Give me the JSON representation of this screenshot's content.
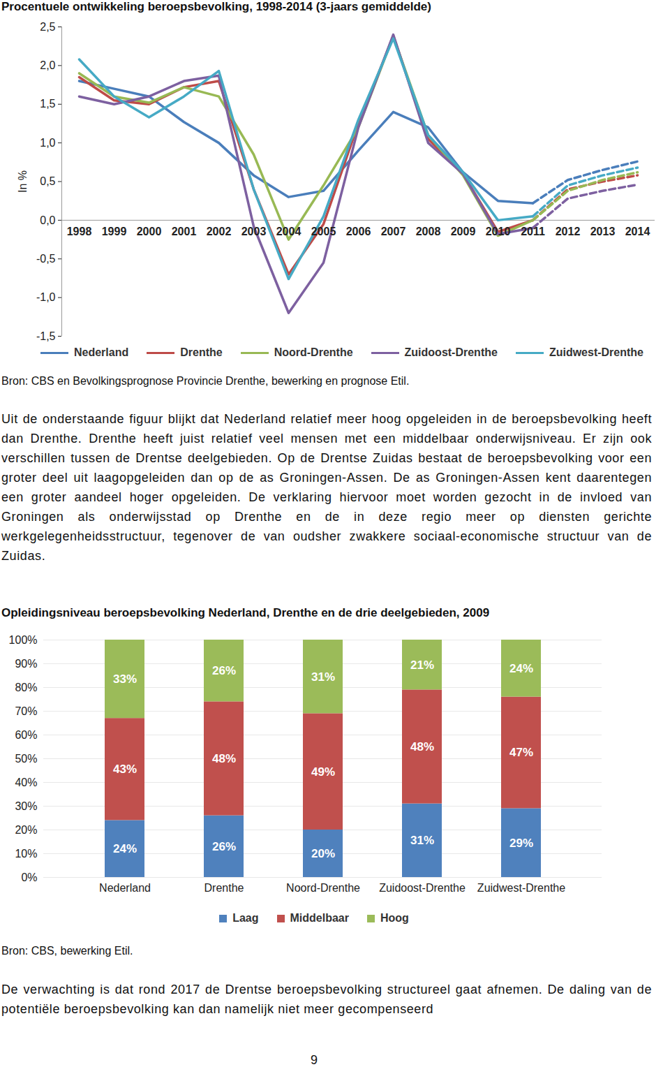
{
  "chart_data": [
    {
      "type": "line",
      "title": "Procentuele ontwikkeling beroepsbevolking, 1998-2014 (3-jaars gemiddelde)",
      "y_label": "In %",
      "x": [
        1998,
        1999,
        2000,
        2001,
        2002,
        2003,
        2004,
        2005,
        2006,
        2007,
        2008,
        2009,
        2010,
        2011,
        2012,
        2013,
        2014
      ],
      "xlim": [
        1997.5,
        2014.5
      ],
      "xticks": [
        1998,
        1999,
        2000,
        2001,
        2002,
        2003,
        2004,
        2005,
        2006,
        2007,
        2008,
        2009,
        2010,
        2011,
        2012,
        2013,
        2014
      ],
      "ylim": [
        -1.5,
        2.5
      ],
      "yticks": [
        {
          "value": -1.5,
          "label": "-1,5"
        },
        {
          "value": -1,
          "label": "-1,0"
        },
        {
          "value": -0.5,
          "label": "-0,5"
        },
        {
          "value": 0,
          "label": "0,0"
        },
        {
          "value": 0.5,
          "label": "0,5"
        },
        {
          "value": 1,
          "label": "1,0"
        },
        {
          "value": 1.5,
          "label": "1,5"
        },
        {
          "value": 2,
          "label": "2,0"
        },
        {
          "value": 2.5,
          "label": "2,5"
        }
      ],
      "grid": false,
      "legend": "bottom",
      "series": [
        {
          "name": "Nederland",
          "color": "#4a7ebb",
          "line_style": "solid",
          "values": [
            1.8,
            1.7,
            1.6,
            1.27,
            1.0,
            0.58,
            0.3,
            0.38,
            0.9,
            1.4,
            1.2,
            0.62,
            0.25,
            0.22,
            null,
            null,
            null
          ]
        },
        {
          "name": "Drenthe",
          "color": "#be4b48",
          "line_style": "solid",
          "values": [
            1.85,
            1.55,
            1.5,
            1.72,
            1.8,
            0.4,
            -0.7,
            -0.05,
            1.25,
            2.38,
            1.05,
            0.6,
            -0.15,
            0.0,
            null,
            null,
            null
          ]
        },
        {
          "name": "Noord-Drenthe",
          "color": "#98b954",
          "line_style": "solid",
          "values": [
            1.9,
            1.6,
            1.52,
            1.72,
            1.6,
            0.85,
            -0.25,
            0.45,
            1.2,
            2.38,
            1.1,
            0.58,
            -0.2,
            0.0,
            null,
            null,
            null
          ]
        },
        {
          "name": "Zuidoost-Drenthe",
          "color": "#7d60a0",
          "line_style": "solid",
          "values": [
            1.6,
            1.5,
            1.6,
            1.8,
            1.87,
            -0.08,
            -1.2,
            -0.55,
            1.2,
            2.4,
            1.0,
            0.6,
            -0.18,
            -0.1,
            null,
            null,
            null
          ]
        },
        {
          "name": "Zuidwest-Drenthe",
          "color": "#46aac5",
          "line_style": "solid",
          "values": [
            2.08,
            1.6,
            1.33,
            1.6,
            1.93,
            0.4,
            -0.76,
            0.05,
            1.3,
            2.35,
            1.1,
            0.62,
            0.0,
            0.05,
            null,
            null,
            null
          ]
        },
        {
          "name": "Nederland",
          "color": "#4a7ebb",
          "line_style": "dashed",
          "values": [
            null,
            null,
            null,
            null,
            null,
            null,
            null,
            null,
            null,
            null,
            null,
            null,
            null,
            0.22,
            0.52,
            0.65,
            0.76
          ]
        },
        {
          "name": "Drenthe",
          "color": "#be4b48",
          "line_style": "dashed",
          "values": [
            null,
            null,
            null,
            null,
            null,
            null,
            null,
            null,
            null,
            null,
            null,
            null,
            null,
            0.0,
            0.4,
            0.5,
            0.58
          ]
        },
        {
          "name": "Noord-Drenthe",
          "color": "#98b954",
          "line_style": "dashed",
          "values": [
            null,
            null,
            null,
            null,
            null,
            null,
            null,
            null,
            null,
            null,
            null,
            null,
            null,
            0.0,
            0.38,
            0.52,
            0.62
          ]
        },
        {
          "name": "Zuidoost-Drenthe",
          "color": "#7d60a0",
          "line_style": "dashed",
          "values": [
            null,
            null,
            null,
            null,
            null,
            null,
            null,
            null,
            null,
            null,
            null,
            null,
            null,
            -0.1,
            0.28,
            0.38,
            0.46
          ]
        },
        {
          "name": "Zuidwest-Drenthe",
          "color": "#46aac5",
          "line_style": "dashed",
          "values": [
            null,
            null,
            null,
            null,
            null,
            null,
            null,
            null,
            null,
            null,
            null,
            null,
            null,
            0.05,
            0.45,
            0.58,
            0.68
          ]
        }
      ]
    },
    {
      "type": "bar",
      "title": "Opleidingsniveau beroepsbevolking Nederland, Drenthe en de drie deelgebieden, 2009",
      "stacked": true,
      "data_labels": true,
      "categories": [
        "Nederland",
        "Drenthe",
        "Noord-Drenthe",
        "Zuidoost-Drenthe",
        "Zuidwest-Drenthe"
      ],
      "ylim": [
        0,
        100
      ],
      "yticks": [
        {
          "value": 0,
          "label": "0%"
        },
        {
          "value": 10,
          "label": "10%"
        },
        {
          "value": 20,
          "label": "20%"
        },
        {
          "value": 30,
          "label": "30%"
        },
        {
          "value": 40,
          "label": "40%"
        },
        {
          "value": 50,
          "label": "50%"
        },
        {
          "value": 60,
          "label": "60%"
        },
        {
          "value": 70,
          "label": "70%"
        },
        {
          "value": 80,
          "label": "80%"
        },
        {
          "value": 90,
          "label": "90%"
        },
        {
          "value": 100,
          "label": "100%"
        }
      ],
      "grid": true,
      "legend": "bottom",
      "series": [
        {
          "name": "Laag",
          "color": "#4f81bd",
          "values": [
            24,
            26,
            20,
            31,
            29
          ],
          "value_labels": [
            "24%",
            "26%",
            "20%",
            "31%",
            "29%"
          ]
        },
        {
          "name": "Middelbaar",
          "color": "#c0504d",
          "values": [
            43,
            48,
            49,
            48,
            47
          ],
          "value_labels": [
            "43%",
            "48%",
            "49%",
            "48%",
            "47%"
          ]
        },
        {
          "name": "Hoog",
          "color": "#9bbb59",
          "values": [
            33,
            26,
            31,
            21,
            24
          ],
          "value_labels": [
            "33%",
            "26%",
            "31%",
            "21%",
            "24%"
          ]
        }
      ]
    }
  ],
  "page": {
    "sources": [
      "Bron: CBS en Bevolkingsprognose Provincie Drenthe, bewerking en prognose Etil.",
      "Bron: CBS, bewerking Etil."
    ],
    "paragraphs": [
      "Uit de onderstaande figuur blijkt dat Nederland relatief meer hoog opgeleiden in de beroepsbevolking heeft dan Drenthe. Drenthe heeft juist relatief veel mensen met een middelbaar onderwijsniveau. Er zijn ook verschillen tussen de Drentse deelgebieden. Op de Drentse Zuidas bestaat de beroepsbevolking voor een groter deel uit laagopgeleiden dan op de as Groningen-Assen. De as Groningen-Assen kent daarentegen een groter aandeel hoger opgeleiden. De verklaring hiervoor moet worden gezocht in de invloed van Groningen als onderwijsstad op Drenthe en de in deze regio meer op diensten gerichte werkgelegenheidsstructuur, tegenover de van oudsher zwakkere sociaal-economische structuur van de Zuidas.",
      "De verwachting is dat rond 2017 de Drentse beroepsbevolking structureel gaat afnemen. De daling van de potentiële beroepsbevolking kan dan namelijk niet meer gecompenseerd"
    ],
    "page_number": "9"
  }
}
